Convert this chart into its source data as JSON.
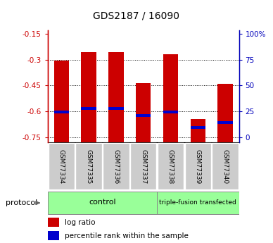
{
  "title": "GDS2187 / 16090",
  "samples": [
    "GSM77334",
    "GSM77335",
    "GSM77336",
    "GSM77337",
    "GSM77338",
    "GSM77339",
    "GSM77340"
  ],
  "log_ratios": [
    -0.305,
    -0.255,
    -0.255,
    -0.435,
    -0.27,
    -0.645,
    -0.44
  ],
  "percentile_ranks": [
    -0.605,
    -0.585,
    -0.585,
    -0.625,
    -0.605,
    -0.695,
    -0.665
  ],
  "ylim": [
    -0.78,
    -0.13
  ],
  "yticks_left": [
    -0.75,
    -0.6,
    -0.45,
    -0.3,
    -0.15
  ],
  "yticks_right_labels": [
    "0",
    "25",
    "50",
    "75",
    "100%"
  ],
  "bar_color_red": "#cc0000",
  "bar_color_blue": "#0000cc",
  "bar_width": 0.55,
  "protocol_label": "protocol",
  "left_axis_color": "#cc0000",
  "right_axis_color": "#0000bb",
  "group1_label": "control",
  "group1_count": 4,
  "group2_label": "triple-fusion transfected",
  "group2_count": 3,
  "group_color": "#99ff99",
  "sample_box_color": "#cccccc",
  "legend_red_label": "log ratio",
  "legend_blue_label": "percentile rank within the sample"
}
